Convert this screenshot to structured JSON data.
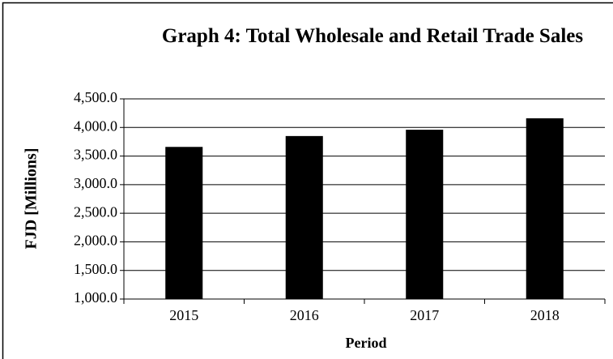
{
  "chart_data": {
    "type": "bar",
    "title": "Graph 4: Total Wholesale and Retail Trade Sales",
    "x_label": "Period",
    "y_label": "FJD [Millions]",
    "categories": [
      "2015",
      "2016",
      "2017",
      "2018"
    ],
    "values": [
      3660,
      3850,
      3960,
      4160
    ],
    "color": "#000000",
    "ylim": [
      1000,
      4500
    ],
    "yticks": [
      {
        "value": 1000,
        "label": "1,000.0"
      },
      {
        "value": 1500,
        "label": "1,500.0"
      },
      {
        "value": 2000,
        "label": "2,000.0"
      },
      {
        "value": 2500,
        "label": "2,500.0"
      },
      {
        "value": 3000,
        "label": "3,000.0"
      },
      {
        "value": 3500,
        "label": "3,500.0"
      },
      {
        "value": 4000,
        "label": "4,000.0"
      },
      {
        "value": 4500,
        "label": "4,500.0"
      }
    ],
    "grid": true
  }
}
